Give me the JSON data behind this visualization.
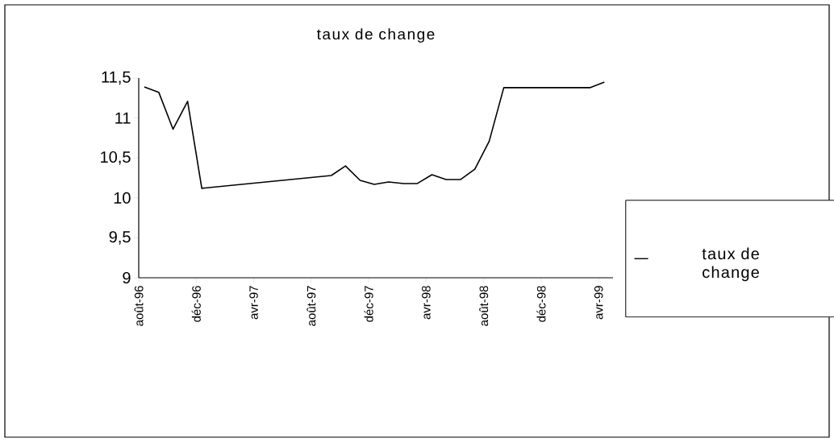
{
  "chart_data": {
    "type": "line",
    "title": "taux de change",
    "x": [
      "1996-08-13",
      "1996-09-13",
      "1996-10-13",
      "1996-11-13",
      "1996-12-13",
      "1997-09-13",
      "1997-10-13",
      "1997-11-13",
      "1997-12-13",
      "1998-01-13",
      "1998-02-13",
      "1998-03-13",
      "1998-04-13",
      "1998-05-13",
      "1998-06-13",
      "1998-07-13",
      "1998-08-13",
      "1998-09-13",
      "1999-03-13",
      "1999-04-13"
    ],
    "series": [
      {
        "name": "taux de change",
        "color": "#000000",
        "values": [
          11.39,
          11.32,
          10.86,
          11.21,
          10.12,
          10.28,
          10.4,
          10.22,
          10.17,
          10.2,
          10.18,
          10.18,
          10.29,
          10.23,
          10.23,
          10.36,
          10.71,
          11.38,
          11.38,
          11.45
        ]
      }
    ],
    "xlim": [
      "1996-08-01",
      "1999-05-01"
    ],
    "xticks": [
      {
        "value": "1996-08-01",
        "label": "août-96"
      },
      {
        "value": "1996-12-01",
        "label": "déc-96"
      },
      {
        "value": "1997-04-01",
        "label": "avr-97"
      },
      {
        "value": "1997-08-01",
        "label": "août-97"
      },
      {
        "value": "1997-12-01",
        "label": "déc-97"
      },
      {
        "value": "1998-04-01",
        "label": "avr-98"
      },
      {
        "value": "1998-08-01",
        "label": "août-98"
      },
      {
        "value": "1998-12-01",
        "label": "déc-98"
      },
      {
        "value": "1999-04-01",
        "label": "avr-99"
      }
    ],
    "ylim": [
      9,
      11.5
    ],
    "yticks": [
      9,
      {
        "value": 9.5,
        "label": "9,5"
      },
      10,
      {
        "value": 10.5,
        "label": "10,5"
      },
      11,
      {
        "value": 11.5,
        "label": "11,5"
      }
    ],
    "legend": "right",
    "marker": "none"
  }
}
